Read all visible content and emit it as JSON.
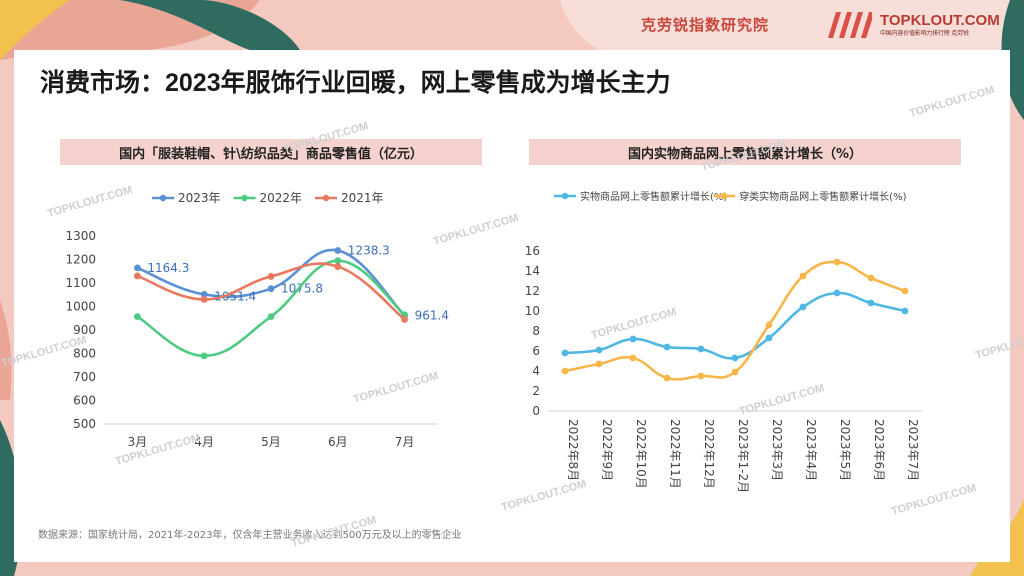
{
  "header": {
    "brand": "克劳锐指数研究院",
    "logo_main": "TOPKLOUT.COM",
    "logo_sub": "中国内容价值影响力排行榜 克劳锐"
  },
  "page_title": "消费市场：2023年服饰行业回暖，网上零售成为增长主力",
  "source": "数据来源：国家统计局，2021年-2023年，仅含年主营业务收入达到500万元及以上的零售企业",
  "watermark": "TOPKLOUT.COM",
  "chart_data": [
    {
      "type": "line",
      "title": "国内「服装鞋帽、针\\纺织品类」商品零售值（亿元）",
      "categories": [
        "3月",
        "4月",
        "5月",
        "6月",
        "7月"
      ],
      "ylim": [
        500,
        1300
      ],
      "yticks": [
        500,
        600,
        700,
        800,
        900,
        1000,
        1100,
        1200,
        1300
      ],
      "legend_position": "top",
      "grid": false,
      "series": [
        {
          "name": "2023年",
          "color": "#5b8fd6",
          "values": [
            1164.3,
            1051.4,
            1075.8,
            1238.3,
            961.4
          ],
          "labels": [
            "1164.3",
            "1051.4",
            "1075.8",
            "1238.3",
            "961.4"
          ]
        },
        {
          "name": "2022年",
          "color": "#4ecb83",
          "values": [
            957,
            790,
            957,
            1195,
            965
          ]
        },
        {
          "name": "2021年",
          "color": "#e8795e",
          "values": [
            1130,
            1030,
            1128,
            1170,
            945
          ]
        }
      ]
    },
    {
      "type": "line",
      "title": "国内实物商品网上零售额累计增长（%）",
      "categories": [
        "2022年8月",
        "2022年9月",
        "2022年10月",
        "2022年11月",
        "2022年12月",
        "2023年1-2月",
        "2023年3月",
        "2023年4月",
        "2023年5月",
        "2023年6月",
        "2023年7月"
      ],
      "ylim": [
        0,
        16
      ],
      "yticks": [
        0,
        2,
        4,
        6,
        8,
        10,
        12,
        14,
        16
      ],
      "legend_position": "top",
      "grid": false,
      "series": [
        {
          "name": "实物商品网上零售额累计增长(%)",
          "color": "#4fb7e3",
          "values": [
            5.8,
            6.1,
            7.2,
            6.4,
            6.2,
            5.3,
            7.3,
            10.4,
            11.8,
            10.8,
            10.0
          ]
        },
        {
          "name": "穿类实物商品网上零售额累计增长(%)",
          "color": "#f7b64a",
          "values": [
            4.0,
            4.7,
            5.3,
            3.3,
            3.5,
            3.9,
            8.6,
            13.5,
            14.9,
            13.3,
            12.0
          ]
        }
      ]
    }
  ]
}
